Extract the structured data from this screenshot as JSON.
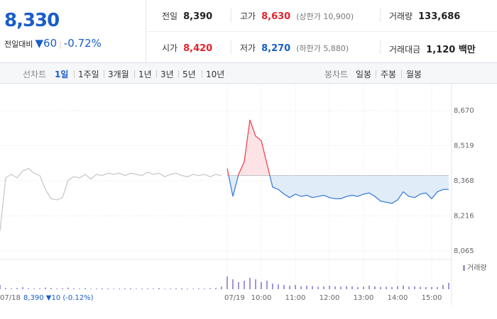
{
  "header": {
    "price": "8,330",
    "change_label": "전일대비",
    "change": "▼60",
    "change_rate": "-0.72%",
    "stats": [
      {
        "label": "전일",
        "value": "8,390",
        "color": "#222222"
      },
      {
        "label": "고가",
        "value": "8,630",
        "note": "(상한가 10,900)",
        "color": "#e4222b"
      },
      {
        "label": "거래량",
        "value": "133,686",
        "color": "#222222"
      },
      {
        "label": "시가",
        "value": "8,420",
        "color": "#e4222b"
      },
      {
        "label": "저가",
        "value": "8,270",
        "note": "(하한가 5,880)",
        "color": "#1a5dc8"
      },
      {
        "label": "거래대금",
        "value": "1,120 백만",
        "color": "#222222"
      }
    ]
  },
  "tabs": {
    "line_label": "선차트",
    "line_periods": [
      "1일",
      "1주일",
      "3개월",
      "1년",
      "3년",
      "5년",
      "10년"
    ],
    "selected_index": 0,
    "candle_label": "봉차트",
    "candle_periods": [
      "일봉",
      "주봉",
      "월봉"
    ]
  },
  "chart_data": {
    "type": "line",
    "categories": [
      "07/18",
      null,
      null,
      null,
      null,
      null,
      null,
      null,
      null,
      null,
      null,
      null,
      null,
      null,
      null,
      null,
      null,
      null,
      null,
      null,
      null,
      null,
      null,
      null,
      null,
      null,
      null,
      null,
      null,
      null,
      null,
      null,
      null,
      null,
      null,
      null,
      null,
      null,
      null,
      null,
      "07/19",
      null,
      null,
      null,
      null,
      null,
      "10:00",
      null,
      null,
      null,
      null,
      null,
      "11:00",
      null,
      null,
      null,
      null,
      null,
      "12:00",
      null,
      null,
      null,
      null,
      null,
      "13:00",
      null,
      null,
      null,
      null,
      null,
      "14:00",
      null,
      null,
      null,
      null,
      null,
      "15:00",
      null,
      null,
      null
    ],
    "series": [
      {
        "color": "#c9c9c9",
        "values": [
          8150,
          8380,
          8395,
          8380,
          8410,
          8420,
          8400,
          8390,
          8330,
          8290,
          8285,
          8295,
          8370,
          8385,
          8380,
          8395,
          8375,
          8395,
          8390,
          8400,
          8395,
          8400,
          8390,
          8400,
          8395,
          8390,
          8405,
          8395,
          8400,
          8385,
          8395,
          8400,
          8390,
          8385,
          8395,
          8390,
          8395,
          8385,
          8395,
          8390,
          null,
          null,
          null,
          null,
          null,
          null,
          null,
          null,
          null,
          null,
          null,
          null,
          null,
          null,
          null,
          null,
          null,
          null,
          null,
          null,
          null,
          null,
          null,
          null,
          null,
          null,
          null,
          null,
          null,
          null,
          null,
          null,
          null,
          null,
          null,
          null,
          null,
          null,
          null,
          null
        ]
      },
      {
        "up_color": "#f04452",
        "down_color": "#3d7fd9",
        "up_fill": "#fde3e5",
        "down_fill": "#e1ecf9",
        "values": [
          null,
          null,
          null,
          null,
          null,
          null,
          null,
          null,
          null,
          null,
          null,
          null,
          null,
          null,
          null,
          null,
          null,
          null,
          null,
          null,
          null,
          null,
          null,
          null,
          null,
          null,
          null,
          null,
          null,
          null,
          null,
          null,
          null,
          null,
          null,
          null,
          null,
          null,
          null,
          null,
          8420,
          8300,
          8395,
          8450,
          8630,
          8560,
          8540,
          8440,
          8340,
          8330,
          8310,
          8295,
          8310,
          8300,
          8305,
          8295,
          8300,
          8305,
          8295,
          8290,
          8290,
          8300,
          8305,
          8300,
          8310,
          8315,
          8300,
          8280,
          8275,
          8270,
          8285,
          8320,
          8300,
          8295,
          8310,
          8315,
          8290,
          8320,
          8330,
          8330
        ]
      }
    ],
    "volume": {
      "name": "거래량",
      "color": "#a494d6",
      "values": [
        3000,
        800,
        600,
        900,
        1500,
        700,
        500,
        600,
        1200,
        900,
        500,
        700,
        1100,
        600,
        500,
        800,
        400,
        500,
        700,
        600,
        400,
        500,
        600,
        700,
        400,
        500,
        600,
        500,
        800,
        400,
        500,
        600,
        700,
        500,
        400,
        600,
        500,
        700,
        900,
        1800,
        9000,
        7000,
        5000,
        6000,
        8000,
        7000,
        5000,
        6000,
        4000,
        3500,
        3000,
        2500,
        3000,
        2000,
        2500,
        2200,
        1800,
        2000,
        2500,
        2000,
        1800,
        2200,
        2000,
        1500,
        1800,
        2500,
        2000,
        1600,
        1800,
        1500,
        2200,
        2600,
        1800,
        2000,
        1700,
        1500,
        1600,
        1500,
        3000,
        4500
      ]
    },
    "reference_line": 8390,
    "info": "8,390 ▼10 (-0.12%)",
    "ylim": [
      8040,
      8720
    ],
    "yticks": [
      {
        "value": 8670,
        "label": "8,670"
      },
      {
        "value": 8519,
        "label": "8,519"
      },
      {
        "value": 8368,
        "label": "8,368"
      },
      {
        "value": 8216,
        "label": "8,216"
      },
      {
        "value": 8065,
        "label": "8,065"
      }
    ],
    "grid": true
  }
}
